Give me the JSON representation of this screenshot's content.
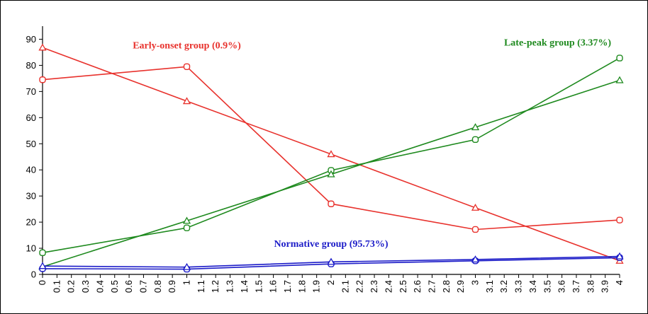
{
  "chart_data": {
    "type": "line",
    "title": "",
    "xlabel": "",
    "ylabel": "",
    "xlim": [
      0,
      4
    ],
    "ylim": [
      0,
      95
    ],
    "x_tick_step": 0.1,
    "y_ticks": [
      0,
      10,
      20,
      30,
      40,
      50,
      60,
      70,
      80,
      90
    ],
    "grid": false,
    "legend": "none",
    "series": [
      {
        "color": "#e8322d",
        "marker": "circle",
        "points": [
          [
            0,
            74.5
          ],
          [
            1,
            79.5
          ],
          [
            2,
            27
          ],
          [
            3,
            17.2
          ],
          [
            4,
            20.8
          ]
        ]
      },
      {
        "color": "#e8322d",
        "marker": "triangle",
        "points": [
          [
            0,
            86.8
          ],
          [
            1,
            66.3
          ],
          [
            2,
            46
          ],
          [
            3,
            25.5
          ],
          [
            4,
            5.2
          ]
        ]
      },
      {
        "color": "#1f8a1f",
        "marker": "circle",
        "points": [
          [
            0,
            8.3
          ],
          [
            1,
            17.8
          ],
          [
            2,
            39.8
          ],
          [
            3,
            51.6
          ],
          [
            4,
            82.8
          ]
        ]
      },
      {
        "color": "#1f8a1f",
        "marker": "triangle",
        "points": [
          [
            0,
            2.9
          ],
          [
            1,
            20.5
          ],
          [
            2,
            38.3
          ],
          [
            3,
            56.3
          ],
          [
            4,
            74.3
          ]
        ]
      },
      {
        "color": "#1c1cc8",
        "marker": "circle",
        "points": [
          [
            0,
            2.2
          ],
          [
            1,
            2
          ],
          [
            2,
            4
          ],
          [
            3,
            5.2
          ],
          [
            4,
            6.4
          ]
        ]
      },
      {
        "color": "#1c1cc8",
        "marker": "triangle",
        "points": [
          [
            0,
            3.2
          ],
          [
            1,
            2.8
          ],
          [
            2,
            4.8
          ],
          [
            3,
            5.7
          ],
          [
            4,
            6.9
          ]
        ]
      }
    ],
    "annotations": [
      {
        "text": "Early-onset group (0.9%)",
        "color": "#e8322d",
        "x": 1.0,
        "y": 86.5
      },
      {
        "text": "Late-peak group (3.37%)",
        "color": "#1f8a1f",
        "x": 3.57,
        "y": 87.5
      },
      {
        "text": "Normative group (95.73%)",
        "color": "#1c1cc8",
        "x": 2.0,
        "y": 10.5
      }
    ]
  }
}
